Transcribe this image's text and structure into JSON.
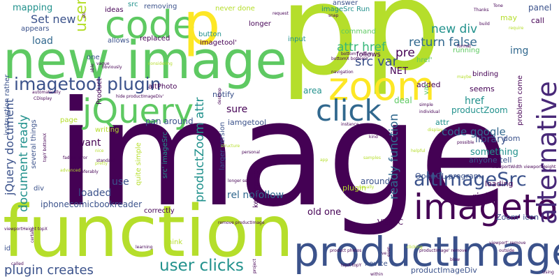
{
  "cloud": {
    "words": [
      {
        "text": "p",
        "color": "#b5de2b",
        "orientation": "horizontal"
      },
      {
        "text": "p",
        "color": "#b5de2b",
        "orientation": "horizontal"
      },
      {
        "text": "image",
        "color": "#440154",
        "orientation": "horizontal"
      },
      {
        "text": "function",
        "color": "#b5de2b",
        "orientation": "horizontal"
      },
      {
        "text": "new image",
        "color": "#5ec962",
        "orientation": "horizontal"
      },
      {
        "text": "productImage",
        "color": "#3b528b",
        "orientation": "horizontal"
      },
      {
        "text": "code",
        "color": "#5ec962",
        "orientation": "horizontal"
      },
      {
        "text": "p",
        "color": "#fde725",
        "orientation": "horizontal"
      },
      {
        "text": "zoom",
        "color": "#fde725",
        "orientation": "horizontal"
      },
      {
        "text": "jQuery",
        "color": "#5ec962",
        "orientation": "horizontal"
      },
      {
        "text": "click",
        "color": "#31688e",
        "orientation": "horizontal"
      },
      {
        "text": "imagetool",
        "color": "#440154",
        "orientation": "horizontal"
      },
      {
        "text": "alternative",
        "color": "#482878",
        "orientation": "vertical"
      },
      {
        "text": "altImageSrc",
        "color": "#3b528b",
        "orientation": "horizontal"
      },
      {
        "text": "imagetool plugin",
        "color": "#3b528b",
        "orientation": "horizontal"
      },
      {
        "text": "user clicks",
        "color": "#21918c",
        "orientation": "horizontal"
      },
      {
        "text": "plugin creates",
        "color": "#3b528b",
        "orientation": "horizontal"
      },
      {
        "text": "return false",
        "color": "#31688e",
        "orientation": "horizontal"
      },
      {
        "text": "new div",
        "color": "#21918c",
        "orientation": "horizontal"
      },
      {
        "text": "attr href",
        "color": "#35b779",
        "orientation": "horizontal"
      },
      {
        "text": "src var",
        "color": "#3b528b",
        "orientation": "horizontal"
      },
      {
        "text": "code google",
        "color": "#31688e",
        "orientation": "horizontal"
      },
      {
        "text": "ready function",
        "color": "#31688e",
        "orientation": "vertical"
      },
      {
        "text": "document ready",
        "color": "#21918c",
        "orientation": "vertical"
      },
      {
        "text": "jQuery document",
        "color": "#3b528b",
        "orientation": "vertical"
      },
      {
        "text": "productZoom attr",
        "color": "#21918c",
        "orientation": "vertical"
      },
      {
        "text": "Set new",
        "color": "#3b528b",
        "orientation": "horizontal"
      },
      {
        "text": "user",
        "color": "#b5de2b",
        "orientation": "vertical"
      },
      {
        "text": "mapping",
        "color": "#21918c",
        "orientation": "horizontal"
      },
      {
        "text": "pre",
        "color": "#440154",
        "orientation": "horizontal"
      },
      {
        "text": "load",
        "color": "#31688e",
        "orientation": "horizontal"
      },
      {
        "text": "img",
        "color": "#31688e",
        "orientation": "horizontal"
      },
      {
        "text": "href",
        "color": "#21918c",
        "orientation": "horizontal"
      },
      {
        "text": "library",
        "color": "#3b528b",
        "orientation": "horizontal"
      },
      {
        "text": "something",
        "color": "#21918c",
        "orientation": "horizontal"
      },
      {
        "text": "sure",
        "color": "#440154",
        "orientation": "horizontal"
      },
      {
        "text": "use",
        "color": "#3b528b",
        "orientation": "horizontal"
      },
      {
        "text": "want",
        "color": "#440154",
        "orientation": "horizontal"
      },
      {
        "text": "loaded",
        "color": "#3b528b",
        "orientation": "horizontal"
      },
      {
        "text": "rel nofollow",
        "color": "#31688e",
        "orientation": "horizontal"
      },
      {
        "text": "right",
        "color": "#440154",
        "orientation": "horizontal"
      },
      {
        "text": "iphonecomicbookreader",
        "color": "#3b528b",
        "orientation": "horizontal"
      },
      {
        "text": "old one",
        "color": "#440154",
        "orientation": "horizontal"
      },
      {
        "text": "NET",
        "color": "#440154",
        "orientation": "horizontal"
      },
      {
        "text": "around",
        "color": "#3b528b",
        "orientation": "horizontal"
      },
      {
        "text": "pan around",
        "color": "#3b528b",
        "orientation": "horizontal"
      },
      {
        "text": "iamgetool",
        "color": "#3b528b",
        "orientation": "horizontal"
      },
      {
        "text": "notify",
        "color": "#3b528b",
        "orientation": "horizontal"
      },
      {
        "text": "area",
        "color": "#21918c",
        "orientation": "horizontal"
      },
      {
        "text": "deal",
        "color": "#5ec962",
        "orientation": "horizontal"
      },
      {
        "text": "productZoom",
        "color": "#21918c",
        "orientation": "horizontal"
      },
      {
        "text": "seems",
        "color": "#440154",
        "orientation": "horizontal"
      },
      {
        "text": "panel",
        "color": "#3b528b",
        "orientation": "horizontal"
      },
      {
        "text": "call",
        "color": "#440154",
        "orientation": "horizontal"
      },
      {
        "text": "may",
        "color": "#b5de2b",
        "orientation": "horizontal"
      },
      {
        "text": "added",
        "color": "#440154",
        "orientation": "horizontal"
      },
      {
        "text": "attr",
        "color": "#21918c",
        "orientation": "horizontal"
      },
      {
        "text": "dom",
        "color": "#3b528b",
        "orientation": "horizontal"
      },
      {
        "text": "anyone tell",
        "color": "#3b528b",
        "orientation": "horizontal"
      },
      {
        "text": "Visio C",
        "color": "#440154",
        "orientation": "horizontal"
      },
      {
        "text": "Zoom' icon",
        "color": "#3b528b",
        "orientation": "horizontal"
      },
      {
        "text": "plugin",
        "color": "#b5de2b",
        "orientation": "horizontal"
      },
      {
        "text": "loading",
        "color": "#440154",
        "orientation": "horizontal"
      },
      {
        "text": "OpenGL program",
        "color": "#3b528b",
        "orientation": "horizontal"
      },
      {
        "text": "productImageDiv",
        "color": "#3b528b",
        "orientation": "horizontal"
      },
      {
        "text": "think",
        "color": "#b5de2b",
        "orientation": "horizontal"
      },
      {
        "text": "novice",
        "color": "#3b528b",
        "orientation": "horizontal"
      },
      {
        "text": "correctly",
        "color": "#440154",
        "orientation": "horizontal"
      },
      {
        "text": "page",
        "color": "#b5de2b",
        "orientation": "horizontal"
      },
      {
        "text": "writing",
        "color": "#b5de2b",
        "orientation": "horizontal"
      },
      {
        "text": "quite simple",
        "color": "#b5de2b",
        "orientation": "vertical"
      },
      {
        "text": "src' imageSrc",
        "color": "#21918c",
        "orientation": "vertical"
      },
      {
        "text": "larger version",
        "color": "#3b528b",
        "orientation": "vertical"
      },
      {
        "text": "altPhoto",
        "color": "#440154",
        "orientation": "horizontal"
      },
      {
        "text": "key pressed",
        "color": "#440154",
        "orientation": "vertical"
      },
      {
        "text": "button",
        "color": "#21918c",
        "orientation": "horizontal"
      },
      {
        "text": "replaced",
        "color": "#440154",
        "orientation": "horizontal"
      },
      {
        "text": "allows",
        "color": "#3b528b",
        "orientation": "horizontal"
      },
      {
        "text": "imagetool'",
        "color": "#440154",
        "orientation": "horizontal"
      },
      {
        "text": "longer",
        "color": "#440154",
        "orientation": "horizontal"
      },
      {
        "text": "removing",
        "color": "#3b528b",
        "orientation": "horizontal"
      },
      {
        "text": "ideas",
        "color": "#440154",
        "orientation": "horizontal"
      },
      {
        "text": "src",
        "color": "#21918c",
        "orientation": "horizontal"
      },
      {
        "text": "never done",
        "color": "#b5de2b",
        "orientation": "horizontal"
      },
      {
        "text": "imageSrc Run",
        "color": "#21918c",
        "orientation": "horizontal"
      },
      {
        "text": "answer",
        "color": "#3b528b",
        "orientation": "horizontal"
      },
      {
        "text": "appears",
        "color": "#3b528b",
        "orientation": "horizontal"
      },
      {
        "text": "one",
        "color": "#3b528b",
        "orientation": "horizontal"
      },
      {
        "text": "command",
        "color": "#5ec962",
        "orientation": "horizontal"
      },
      {
        "text": "input",
        "color": "#21918c",
        "orientation": "horizontal"
      },
      {
        "text": "follows",
        "color": "#440154",
        "orientation": "horizontal"
      },
      {
        "text": "running",
        "color": "#5ec962",
        "orientation": "horizontal"
      },
      {
        "text": "binding",
        "color": "#440154",
        "orientation": "horizontal"
      },
      {
        "text": "instruction rather",
        "color": "#3b528b",
        "orientation": "vertical"
      },
      {
        "text": "several things",
        "color": "#3b528b",
        "orientation": "vertical"
      },
      {
        "text": "div",
        "color": "#3b528b",
        "orientation": "horizontal"
      },
      {
        "text": "id",
        "color": "#3b528b",
        "orientation": "horizontal"
      },
      {
        "text": "Product",
        "color": "#440154",
        "orientation": "vertical"
      },
      {
        "text": "problem come",
        "color": "#440154",
        "orientation": "vertical"
      },
      {
        "text": "var",
        "color": "#5ec962",
        "orientation": "vertical"
      },
      {
        "text": "href'",
        "color": "#5ec962",
        "orientation": "horizontal"
      },
      {
        "text": "hide productImageDiv'",
        "color": "#440154",
        "orientation": "horizontal"
      },
      {
        "text": "product photos",
        "color": "#440154",
        "orientation": "horizontal"
      },
      {
        "text": "productImage' remove",
        "color": "#440154",
        "orientation": "horizontal"
      },
      {
        "text": "remove productImage",
        "color": "#440154",
        "orientation": "horizontal"
      },
      {
        "text": "viewportHeight topX",
        "color": "#440154",
        "orientation": "horizontal"
      },
      {
        "text": "viewportWidth viewportHeight",
        "color": "#440154",
        "orientation": "horizontal"
      },
      {
        "text": "viewport' remove",
        "color": "#440154",
        "orientation": "horizontal"
      },
      {
        "text": "topX topY",
        "color": "#440154",
        "orientation": "horizontal"
      },
      {
        "text": "bottomX bottomY",
        "color": "#440154",
        "orientation": "horizontal"
      },
      {
        "text": "bottomY return",
        "color": "#440154",
        "orientation": "horizontal"
      },
      {
        "text": "topY bottomX",
        "color": "#440154",
        "orientation": "vertical"
      },
      {
        "text": "fadeIn error",
        "color": "#440154",
        "orientation": "horizontal"
      },
      {
        "text": "navigation",
        "color": "#440154",
        "orientation": "horizontal"
      },
      {
        "text": "instance",
        "color": "#440154",
        "orientation": "horizontal"
      },
      {
        "text": "individual",
        "color": "#440154",
        "orientation": "horizontal"
      },
      {
        "text": "automatically",
        "color": "#440154",
        "orientation": "horizontal"
      },
      {
        "text": "obviously",
        "color": "#440154",
        "orientation": "horizontal"
      },
      {
        "text": "considering",
        "color": "#b5de2b",
        "orientation": "horizontal"
      },
      {
        "text": "preferably",
        "color": "#440154",
        "orientation": "horizontal"
      },
      {
        "text": "learning",
        "color": "#440154",
        "orientation": "horizontal"
      },
      {
        "text": "clicking",
        "color": "#b5de2b",
        "orientation": "horizontal"
      },
      {
        "text": "personal",
        "color": "#440154",
        "orientation": "horizontal"
      },
      {
        "text": "standard",
        "color": "#440154",
        "orientation": "horizontal"
      },
      {
        "text": "advanced",
        "color": "#b5de2b",
        "orientation": "horizontal"
      },
      {
        "text": "helpful",
        "color": "#b5de2b",
        "orientation": "horizontal"
      },
      {
        "text": "samples",
        "color": "#b5de2b",
        "orientation": "horizontal"
      },
      {
        "text": "comics",
        "color": "#440154",
        "orientation": "horizontal"
      },
      {
        "text": "usually",
        "color": "#b5de2b",
        "orientation": "horizontal"
      },
      {
        "text": "possible",
        "color": "#440154",
        "orientation": "horizontal"
      },
      {
        "text": "display",
        "color": "#b5de2b",
        "orientation": "horizontal"
      },
      {
        "text": "format",
        "color": "#440154",
        "orientation": "horizontal"
      },
      {
        "text": "Thanks",
        "color": "#440154",
        "orientation": "horizontal"
      },
      {
        "text": "require",
        "color": "#b5de2b",
        "orientation": "horizontal"
      },
      {
        "text": "build",
        "color": "#440154",
        "orientation": "horizontal"
      },
      {
        "text": "request",
        "color": "#440154",
        "orientation": "horizontal"
      },
      {
        "text": "snap",
        "color": "#440154",
        "orientation": "horizontal"
      },
      {
        "text": "desktop",
        "color": "#440154",
        "orientation": "vertical"
      },
      {
        "text": "Tone",
        "color": "#440154",
        "orientation": "horizontal"
      },
      {
        "text": "maybe",
        "color": "#b5de2b",
        "orientation": "horizontal"
      },
      {
        "text": "kind",
        "color": "#440154",
        "orientation": "horizontal"
      },
      {
        "text": "simple",
        "color": "#440154",
        "orientation": "horizontal"
      },
      {
        "text": "pretty",
        "color": "#b5de2b",
        "orientation": "horizontal"
      },
      {
        "text": "certain",
        "color": "#440154",
        "orientation": "vertical"
      },
      {
        "text": "called",
        "color": "#440154",
        "orientation": "horizontal"
      },
      {
        "text": "within",
        "color": "#440154",
        "orientation": "horizontal"
      },
      {
        "text": "blow",
        "color": "#440154",
        "orientation": "horizontal"
      },
      {
        "text": "outside",
        "color": "#440154",
        "orientation": "horizontal"
      },
      {
        "text": "Using",
        "color": "#440154",
        "orientation": "horizontal"
      },
      {
        "text": "even",
        "color": "#440154",
        "orientation": "vertical"
      },
      {
        "text": "nice",
        "color": "#b5de2b",
        "orientation": "horizontal"
      },
      {
        "text": "vague",
        "color": "#440154",
        "orientation": "horizontal"
      },
      {
        "text": "longer see",
        "color": "#440154",
        "orientation": "horizontal"
      },
      {
        "text": "project",
        "color": "#440154",
        "orientation": "vertical"
      },
      {
        "text": "structure",
        "color": "#b5de2b",
        "orientation": "horizontal"
      },
      {
        "text": "CDisplay",
        "color": "#440154",
        "orientation": "horizontal"
      },
      {
        "text": "app",
        "color": "#b5de2b",
        "orientation": "horizontal"
      },
      {
        "text": "able",
        "color": "#440154",
        "orientation": "vertical"
      },
      {
        "text": "etc",
        "color": "#440154",
        "orientation": "vertical"
      },
      {
        "text": "ve",
        "color": "#440154",
        "orientation": "horizontal"
      }
    ]
  }
}
